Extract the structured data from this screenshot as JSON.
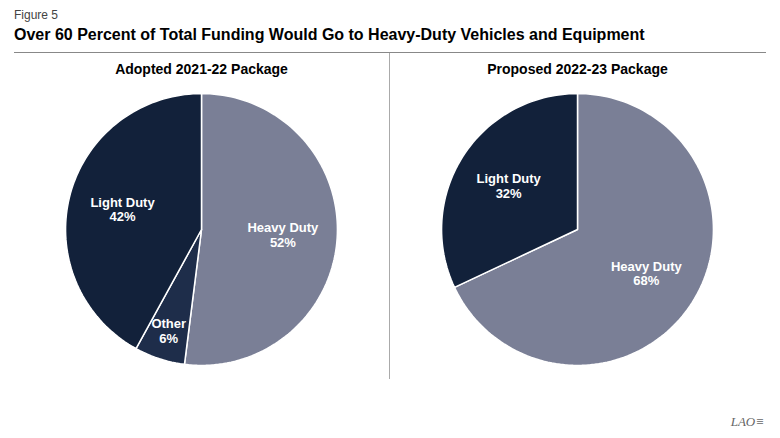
{
  "chart_data": [
    {
      "type": "pie",
      "title": "Over 60 Percent of Total Funding Would Go to Heavy-Duty Vehicles and Equipment",
      "subtitle": "Adopted 2021-22 Package",
      "annotations": [
        "Figure 5"
      ],
      "categories": [
        "Heavy Duty",
        "Other",
        "Light Duty"
      ],
      "values": [
        52,
        6,
        42
      ],
      "value_labels": [
        "52%",
        "6%",
        "42%"
      ],
      "colors": [
        "#7a7f96",
        "#1e2d4a",
        "#12213a"
      ],
      "data_labels": true
    },
    {
      "type": "pie",
      "subtitle": "Proposed 2022-23 Package",
      "annotations": [
        "LAO≡"
      ],
      "categories": [
        "Heavy Duty",
        "Light Duty"
      ],
      "values": [
        68,
        32
      ],
      "value_labels": [
        "68%",
        "32%"
      ],
      "colors": [
        "#7a7f96",
        "#12213a"
      ],
      "data_labels": true
    }
  ]
}
